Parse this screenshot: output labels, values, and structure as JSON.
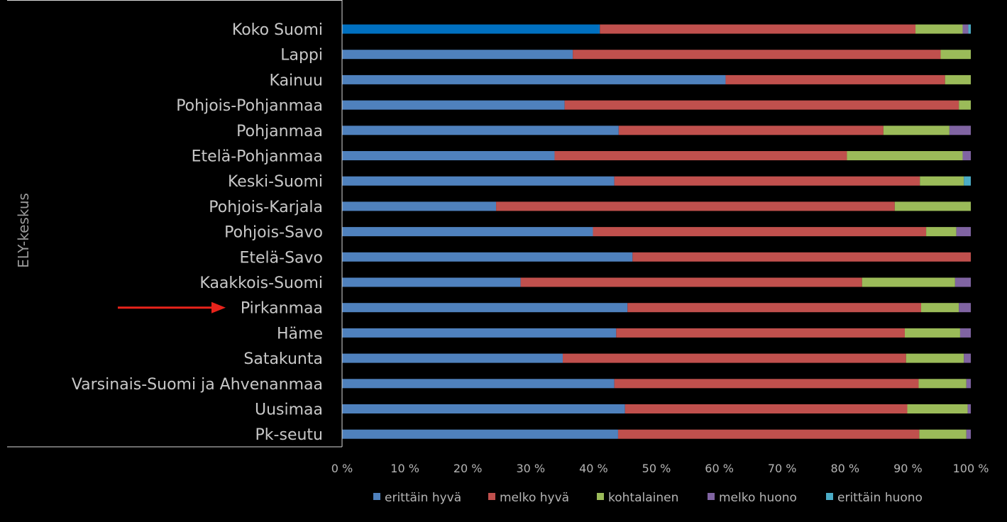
{
  "chart_data": {
    "type": "bar",
    "orientation": "horizontal",
    "stacked": "percent",
    "ylabel": "ELY-keskus",
    "xlim": [
      0,
      100
    ],
    "x_ticks": [
      "0 %",
      "10 %",
      "20 %",
      "30 %",
      "40 %",
      "50 %",
      "60 %",
      "70 %",
      "80 %",
      "90 %",
      "100 %"
    ],
    "legend_position": "bottom",
    "grid": false,
    "highlight": {
      "category": "Pirkanmaa",
      "marker": "red-arrow",
      "color": "#e8231b"
    },
    "categories": [
      "Koko Suomi",
      "Lappi",
      "Kainuu",
      "Pohjois-Pohjanmaa",
      "Pohjanmaa",
      "Etelä-Pohjanmaa",
      "Keski-Suomi",
      "Pohjois-Karjala",
      "Pohjois-Savo",
      "Etelä-Savo",
      "Kaakkois-Suomi",
      "Pirkanmaa",
      "Häme",
      "Satakunta",
      "Varsinais-Suomi ja Ahvenanmaa",
      "Uusimaa",
      "Pk-seutu"
    ],
    "series": [
      {
        "name": "erittäin hyvä",
        "color": "#4f81bd",
        "values": [
          41.0,
          36.7,
          61.0,
          35.4,
          44.0,
          33.8,
          43.3,
          24.5,
          39.9,
          46.2,
          28.4,
          45.4,
          43.6,
          35.1,
          43.3,
          45.0,
          43.9
        ]
      },
      {
        "name": "melko hyvä",
        "color": "#c0504d",
        "values": [
          50.2,
          58.5,
          34.9,
          62.7,
          42.1,
          46.5,
          48.6,
          63.4,
          53.0,
          53.8,
          54.3,
          46.7,
          45.9,
          54.6,
          48.4,
          44.9,
          47.9
        ]
      },
      {
        "name": "kohtalainen",
        "color": "#9bbb59",
        "values": [
          7.5,
          4.8,
          4.1,
          1.9,
          10.5,
          18.4,
          7.0,
          12.1,
          4.8,
          0.0,
          14.8,
          6.0,
          8.8,
          9.2,
          7.6,
          9.6,
          7.5
        ]
      },
      {
        "name": "melko huono",
        "color": "#8064a2",
        "values": [
          0.9,
          0.0,
          0.0,
          0.0,
          3.4,
          1.3,
          0.0,
          0.0,
          2.3,
          0.0,
          2.5,
          1.9,
          1.7,
          1.1,
          0.7,
          0.5,
          0.7
        ]
      },
      {
        "name": "erittäin huono",
        "color": "#4bacc6",
        "values": [
          0.4,
          0.0,
          0.0,
          0.0,
          0.0,
          0.0,
          1.1,
          0.0,
          0.0,
          0.0,
          0.0,
          0.0,
          0.0,
          0.0,
          0.0,
          0.0,
          0.0
        ]
      }
    ]
  },
  "colors": {
    "background": "#000000",
    "axis_line": "#d9d9d9",
    "category_text": "#c8c8c8",
    "tick_text": "#b4b4b4",
    "arrow": "#e8231b",
    "first_row_first_segment": "#0070c0"
  }
}
